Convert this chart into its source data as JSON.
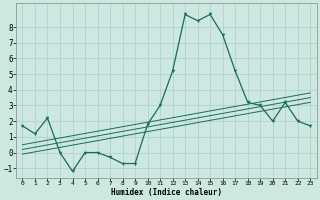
{
  "title": "",
  "xlabel": "Humidex (Indice chaleur)",
  "ylabel": "",
  "background_color": "#cce8e0",
  "grid_color": "#aacfc8",
  "line_color": "#1a6b5a",
  "x_ticks": [
    0,
    1,
    2,
    3,
    4,
    5,
    6,
    7,
    8,
    9,
    10,
    11,
    12,
    13,
    14,
    15,
    16,
    17,
    18,
    19,
    20,
    21,
    22,
    23
  ],
  "y_ticks": [
    -1,
    0,
    1,
    2,
    3,
    4,
    5,
    6,
    7,
    8
  ],
  "ylim": [
    -1.6,
    9.5
  ],
  "xlim": [
    -0.5,
    23.5
  ],
  "main_line": {
    "x": [
      0,
      1,
      2,
      3,
      4,
      5,
      6,
      7,
      8,
      9,
      10,
      11,
      12,
      13,
      14,
      15,
      16,
      17,
      18,
      19,
      20,
      21,
      22,
      23
    ],
    "y": [
      1.7,
      1.2,
      2.2,
      0.0,
      -1.2,
      0.0,
      0.0,
      -0.3,
      -0.7,
      -0.7,
      1.8,
      3.0,
      5.2,
      8.8,
      8.4,
      8.8,
      7.5,
      5.2,
      3.2,
      3.0,
      2.0,
      3.2,
      2.0,
      1.7
    ]
  },
  "line2": {
    "x": [
      0,
      23
    ],
    "y": [
      0.5,
      3.8
    ]
  },
  "line3": {
    "x": [
      0,
      23
    ],
    "y": [
      0.2,
      3.5
    ]
  },
  "line4": {
    "x": [
      0,
      23
    ],
    "y": [
      -0.1,
      3.2
    ]
  },
  "xlabel_fontsize": 5.5,
  "tick_fontsize_x": 4.5,
  "tick_fontsize_y": 5.5
}
